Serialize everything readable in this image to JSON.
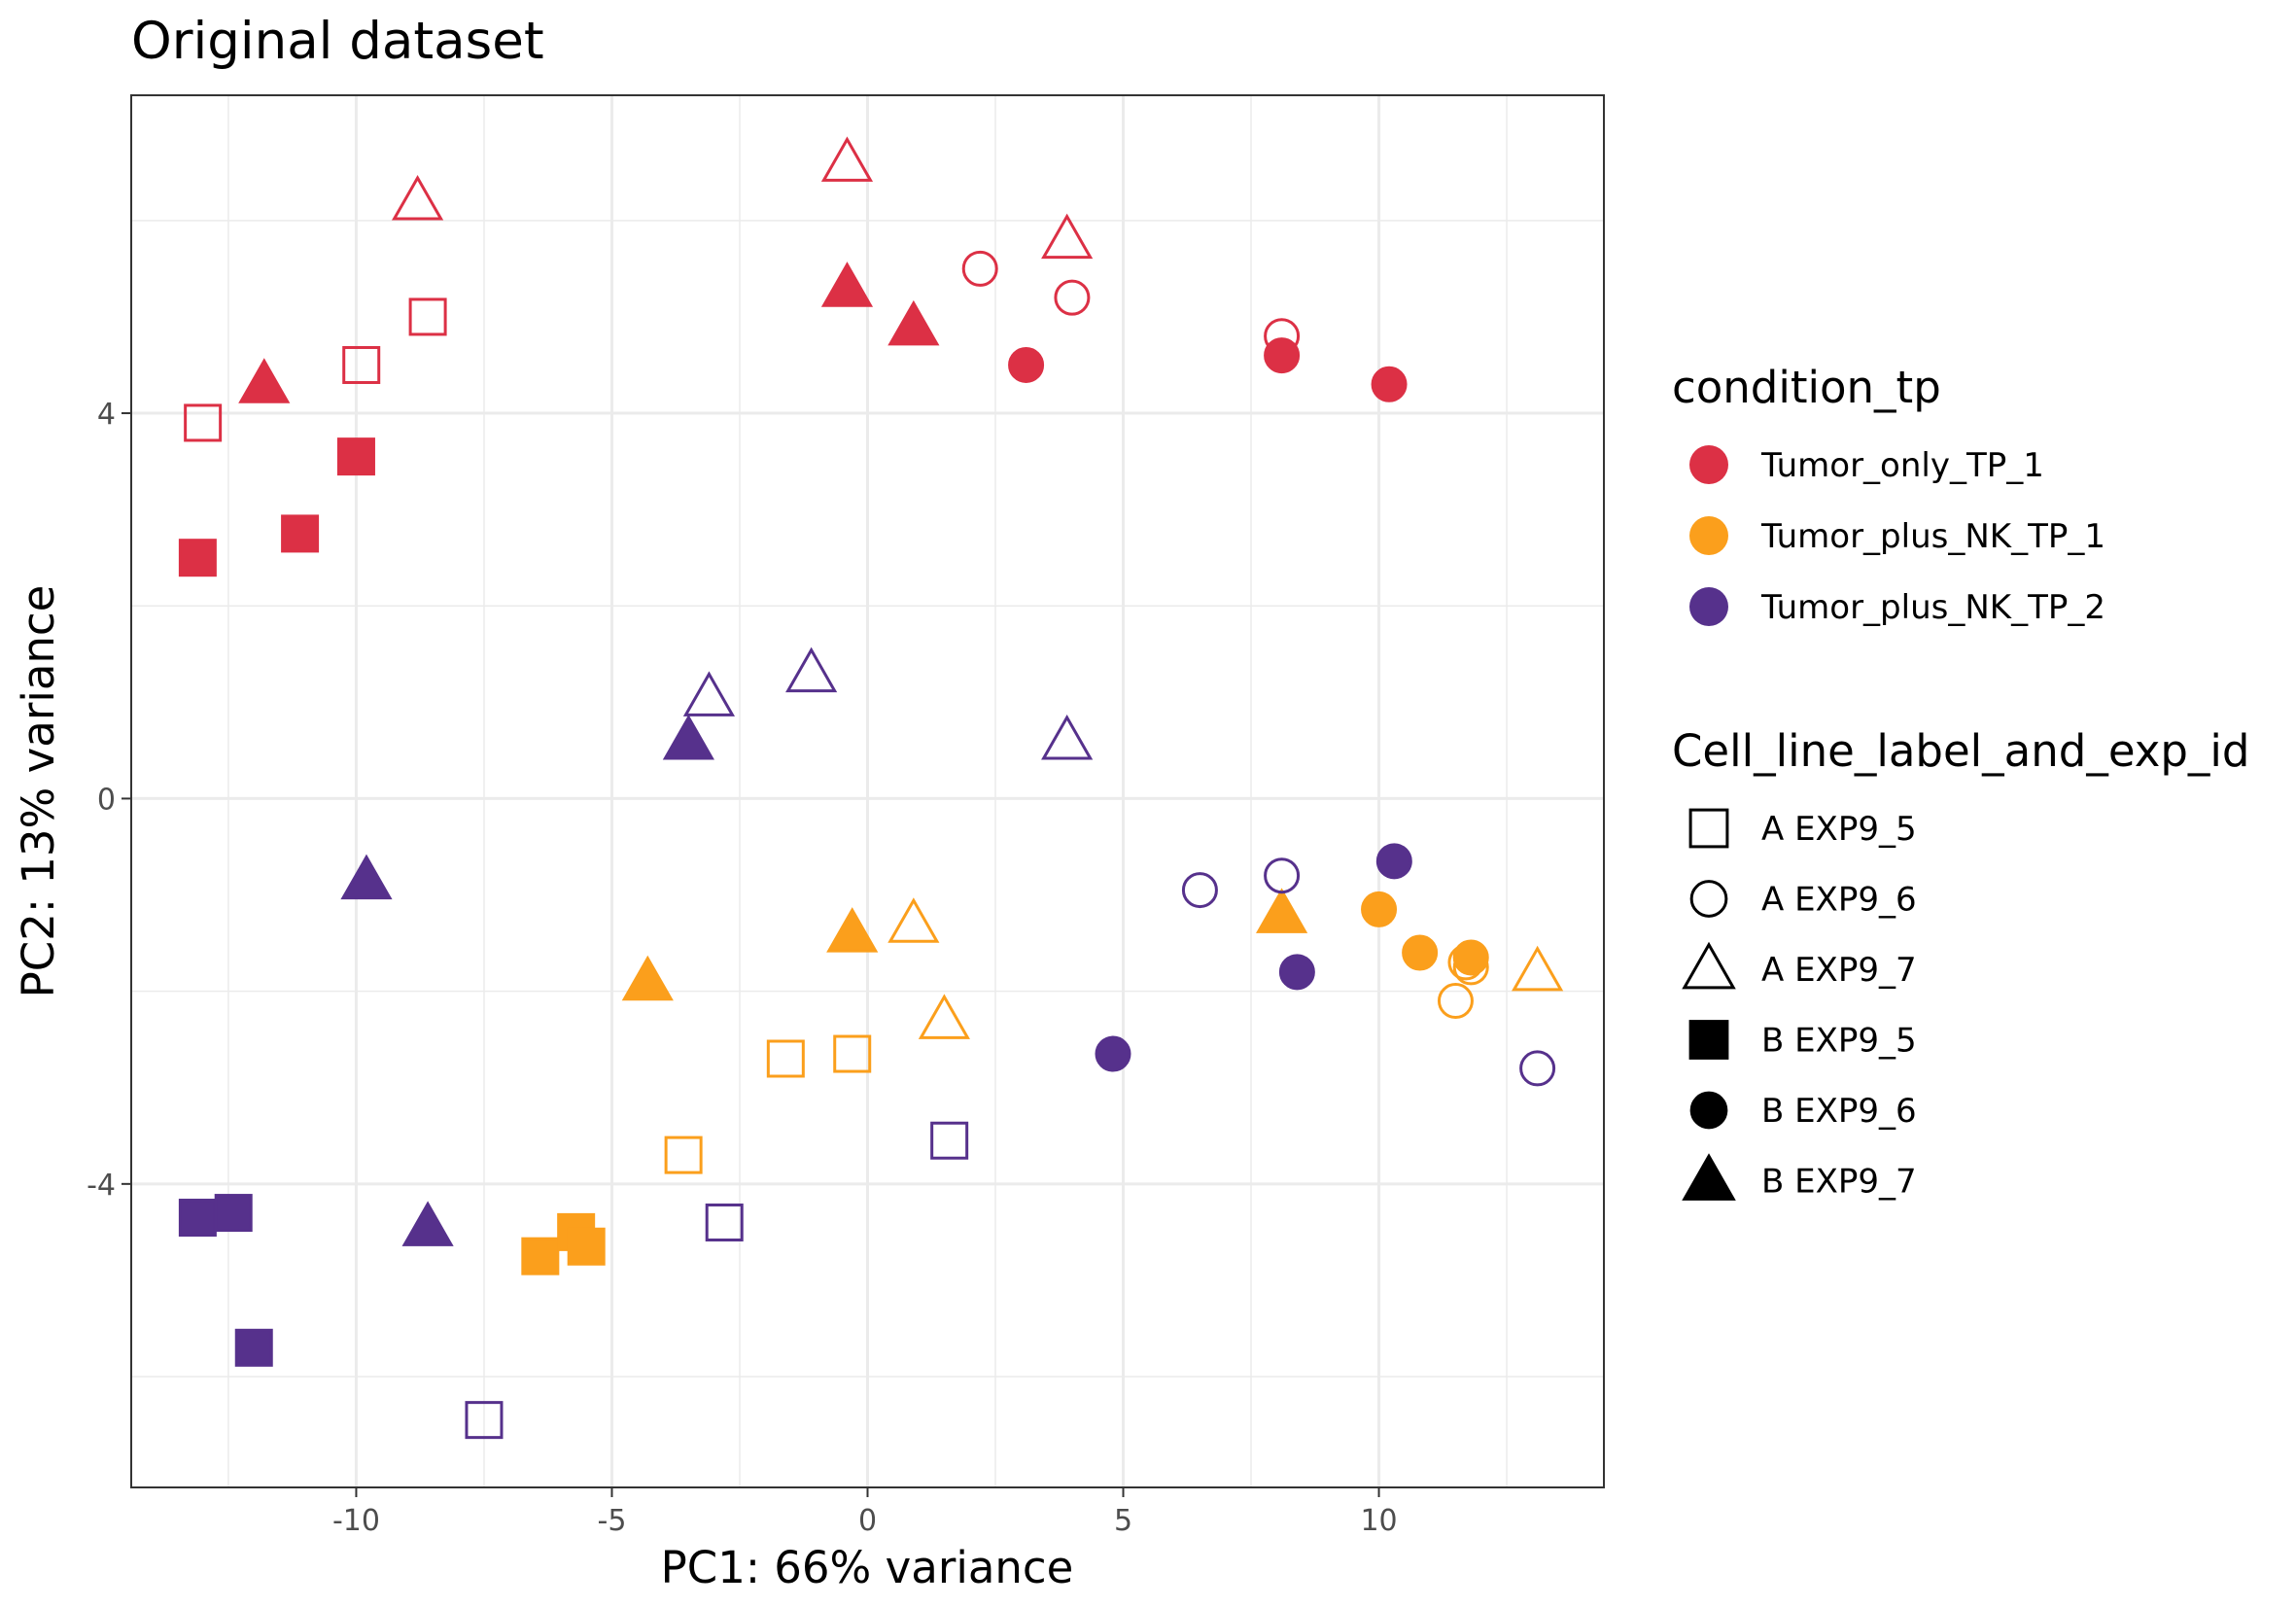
{
  "chart_data": {
    "type": "scatter",
    "title": "Original dataset",
    "xlabel": "PC1: 66% variance",
    "ylabel": "PC2: 13% variance",
    "xlim": [
      -14.4,
      14.4
    ],
    "ylim": [
      -7.15,
      7.3
    ],
    "xticks": [
      -10,
      -5,
      0,
      5,
      10
    ],
    "xtick_labels": [
      "-10",
      "-5",
      "0",
      "5",
      "10"
    ],
    "yticks": [
      -4,
      0,
      4
    ],
    "ytick_labels": [
      "-4",
      "0",
      "4"
    ],
    "grid": true,
    "legend_placement": "right",
    "color_legend": {
      "title": "condition_tp",
      "entries": [
        {
          "label": "Tumor_only_TP_1",
          "color": "#dc3045"
        },
        {
          "label": "Tumor_plus_NK_TP_1",
          "color": "#fb9f1c"
        },
        {
          "label": "Tumor_plus_NK_TP_2",
          "color": "#56318c"
        }
      ]
    },
    "shape_legend": {
      "title": "Cell_line_label_and_exp_id",
      "entries": [
        {
          "label": "A EXP9_5",
          "shape": "square",
          "filled": false
        },
        {
          "label": "A EXP9_6",
          "shape": "circle",
          "filled": false
        },
        {
          "label": "A EXP9_7",
          "shape": "triangle",
          "filled": false
        },
        {
          "label": "B EXP9_5",
          "shape": "square",
          "filled": true
        },
        {
          "label": "B EXP9_6",
          "shape": "circle",
          "filled": true
        },
        {
          "label": "B EXP9_7",
          "shape": "triangle",
          "filled": true
        }
      ]
    },
    "points": [
      {
        "x": -13.0,
        "y": 3.9,
        "cond": 0,
        "shape": 0
      },
      {
        "x": -9.9,
        "y": 4.5,
        "cond": 0,
        "shape": 0
      },
      {
        "x": -8.6,
        "y": 5.0,
        "cond": 0,
        "shape": 0
      },
      {
        "x": -8.8,
        "y": 6.2,
        "cond": 0,
        "shape": 2
      },
      {
        "x": -0.4,
        "y": 6.6,
        "cond": 0,
        "shape": 2
      },
      {
        "x": 3.9,
        "y": 5.8,
        "cond": 0,
        "shape": 2
      },
      {
        "x": 2.2,
        "y": 5.5,
        "cond": 0,
        "shape": 1
      },
      {
        "x": 4.0,
        "y": 5.2,
        "cond": 0,
        "shape": 1
      },
      {
        "x": 8.1,
        "y": 4.8,
        "cond": 0,
        "shape": 1
      },
      {
        "x": -11.8,
        "y": 4.3,
        "cond": 0,
        "shape": 5
      },
      {
        "x": -0.4,
        "y": 5.3,
        "cond": 0,
        "shape": 5
      },
      {
        "x": 0.9,
        "y": 4.9,
        "cond": 0,
        "shape": 5
      },
      {
        "x": 3.1,
        "y": 4.5,
        "cond": 0,
        "shape": 4
      },
      {
        "x": 8.1,
        "y": 4.6,
        "cond": 0,
        "shape": 4
      },
      {
        "x": 10.2,
        "y": 4.3,
        "cond": 0,
        "shape": 4
      },
      {
        "x": -10.0,
        "y": 3.55,
        "cond": 0,
        "shape": 3
      },
      {
        "x": -11.1,
        "y": 2.75,
        "cond": 0,
        "shape": 3
      },
      {
        "x": -13.1,
        "y": 2.5,
        "cond": 0,
        "shape": 3
      },
      {
        "x": 0.9,
        "y": -1.3,
        "cond": 1,
        "shape": 2
      },
      {
        "x": 1.5,
        "y": -2.3,
        "cond": 1,
        "shape": 2
      },
      {
        "x": 13.1,
        "y": -1.8,
        "cond": 1,
        "shape": 2
      },
      {
        "x": -1.6,
        "y": -2.7,
        "cond": 1,
        "shape": 0
      },
      {
        "x": -0.3,
        "y": -2.65,
        "cond": 1,
        "shape": 0
      },
      {
        "x": -3.6,
        "y": -3.7,
        "cond": 1,
        "shape": 0
      },
      {
        "x": 11.8,
        "y": -1.75,
        "cond": 1,
        "shape": 1
      },
      {
        "x": 11.5,
        "y": -2.1,
        "cond": 1,
        "shape": 1
      },
      {
        "x": 11.7,
        "y": -1.7,
        "cond": 1,
        "shape": 1
      },
      {
        "x": 8.1,
        "y": -1.2,
        "cond": 1,
        "shape": 5
      },
      {
        "x": -0.3,
        "y": -1.4,
        "cond": 1,
        "shape": 5
      },
      {
        "x": -4.3,
        "y": -1.9,
        "cond": 1,
        "shape": 5
      },
      {
        "x": 10.0,
        "y": -1.15,
        "cond": 1,
        "shape": 4
      },
      {
        "x": 10.8,
        "y": -1.6,
        "cond": 1,
        "shape": 4
      },
      {
        "x": 11.8,
        "y": -1.65,
        "cond": 1,
        "shape": 4
      },
      {
        "x": -6.4,
        "y": -4.75,
        "cond": 1,
        "shape": 3
      },
      {
        "x": -5.7,
        "y": -4.5,
        "cond": 1,
        "shape": 3
      },
      {
        "x": -5.5,
        "y": -4.65,
        "cond": 1,
        "shape": 3
      },
      {
        "x": -3.1,
        "y": 1.05,
        "cond": 2,
        "shape": 2
      },
      {
        "x": -1.1,
        "y": 1.3,
        "cond": 2,
        "shape": 2
      },
      {
        "x": 3.9,
        "y": 0.6,
        "cond": 2,
        "shape": 2
      },
      {
        "x": 6.5,
        "y": -0.95,
        "cond": 2,
        "shape": 1
      },
      {
        "x": 8.1,
        "y": -0.8,
        "cond": 2,
        "shape": 1
      },
      {
        "x": 13.1,
        "y": -2.8,
        "cond": 2,
        "shape": 1
      },
      {
        "x": 1.6,
        "y": -3.55,
        "cond": 2,
        "shape": 0
      },
      {
        "x": -2.8,
        "y": -4.4,
        "cond": 2,
        "shape": 0
      },
      {
        "x": -7.5,
        "y": -6.45,
        "cond": 2,
        "shape": 0
      },
      {
        "x": -3.5,
        "y": 0.6,
        "cond": 2,
        "shape": 5
      },
      {
        "x": -9.8,
        "y": -0.85,
        "cond": 2,
        "shape": 5
      },
      {
        "x": -8.6,
        "y": -4.45,
        "cond": 2,
        "shape": 5
      },
      {
        "x": 10.3,
        "y": -0.65,
        "cond": 2,
        "shape": 4
      },
      {
        "x": 8.4,
        "y": -1.8,
        "cond": 2,
        "shape": 4
      },
      {
        "x": 4.8,
        "y": -2.65,
        "cond": 2,
        "shape": 4
      },
      {
        "x": -13.1,
        "y": -4.35,
        "cond": 2,
        "shape": 3
      },
      {
        "x": -12.4,
        "y": -4.3,
        "cond": 2,
        "shape": 3
      },
      {
        "x": -12.0,
        "y": -5.7,
        "cond": 2,
        "shape": 3
      }
    ]
  }
}
